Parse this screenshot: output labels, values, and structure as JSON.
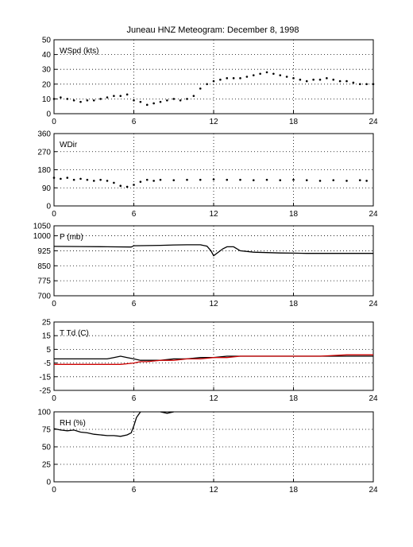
{
  "figure": {
    "title": "Juneau HNZ Meteogram:  December  8, 1998",
    "colors": {
      "axis": "#000000",
      "grid": "#000000",
      "series": "#000000",
      "dewpoint": "#cc0000"
    }
  },
  "chart_data": [
    {
      "type": "scatter",
      "panel_label": "WSpd (kts)",
      "xlim": [
        0,
        24
      ],
      "ylim": [
        0,
        50
      ],
      "x_ticks": [
        "0",
        "6",
        "12",
        "18",
        "24"
      ],
      "y_ticks": [
        "0",
        "10",
        "20",
        "30",
        "40",
        "50"
      ],
      "grid": true,
      "series": [
        {
          "color": "#000000",
          "x": [
            0,
            0.5,
            1,
            1.5,
            2,
            2.5,
            3,
            3.5,
            4,
            4.5,
            5,
            5.5,
            6,
            6.5,
            7,
            7.5,
            8,
            8.5,
            9,
            9.5,
            10,
            10.5,
            11,
            11.5,
            12,
            12.5,
            13,
            13.5,
            14,
            14.5,
            15,
            15.5,
            16,
            16.5,
            17,
            17.5,
            18,
            18.5,
            19,
            19.5,
            20,
            20.5,
            21,
            21.5,
            22,
            22.5,
            23,
            23.5,
            24
          ],
          "values": [
            10,
            11,
            10,
            9,
            8,
            9,
            9,
            10,
            11,
            12,
            12,
            13,
            9,
            8,
            6,
            7,
            8,
            9,
            10,
            9,
            10,
            12,
            17,
            20,
            22,
            23,
            24,
            24,
            24,
            25,
            26,
            27,
            28,
            27,
            26,
            25,
            24,
            23,
            22,
            23,
            23,
            24,
            23,
            22,
            22,
            21,
            20,
            20,
            20
          ]
        }
      ]
    },
    {
      "type": "scatter",
      "panel_label": "WDir",
      "xlim": [
        0,
        24
      ],
      "ylim": [
        0,
        360
      ],
      "x_ticks": [
        "0",
        "6",
        "12",
        "18",
        "24"
      ],
      "y_ticks": [
        "0",
        "90",
        "180",
        "270",
        "360"
      ],
      "grid": true,
      "series": [
        {
          "color": "#000000",
          "x": [
            0,
            0.5,
            1,
            1.5,
            2,
            2.5,
            3,
            3.5,
            4,
            4.5,
            5,
            5.5,
            6,
            6.5,
            7,
            7.5,
            8,
            9,
            10,
            11,
            12,
            13,
            14,
            15,
            16,
            17,
            18,
            19,
            20,
            21,
            22,
            23,
            23.5
          ],
          "values": [
            140,
            135,
            140,
            130,
            135,
            130,
            125,
            130,
            125,
            115,
            100,
            95,
            105,
            120,
            130,
            125,
            130,
            128,
            130,
            130,
            132,
            130,
            130,
            128,
            130,
            128,
            130,
            128,
            125,
            128,
            125,
            128,
            125
          ]
        }
      ]
    },
    {
      "type": "line",
      "panel_label": "P (mb)",
      "xlim": [
        0,
        24
      ],
      "ylim": [
        700,
        1050
      ],
      "x_ticks": [
        "0",
        "6",
        "12",
        "18",
        "24"
      ],
      "y_ticks": [
        "700",
        "775",
        "850",
        "925",
        "1000",
        "1050"
      ],
      "grid": true,
      "series": [
        {
          "color": "#000000",
          "x": [
            0,
            2,
            4,
            5.8,
            6,
            7,
            8,
            9,
            10,
            11,
            11.5,
            11.8,
            12,
            12.3,
            12.7,
            13,
            13.5,
            14,
            15,
            16,
            17,
            18,
            19,
            20,
            21,
            22,
            23,
            24
          ],
          "values": [
            947,
            946,
            945,
            944,
            950,
            951,
            952,
            954,
            955,
            955,
            948,
            925,
            900,
            915,
            935,
            945,
            945,
            925,
            918,
            916,
            914,
            913,
            912,
            912,
            912,
            912,
            912,
            912
          ]
        }
      ]
    },
    {
      "type": "line",
      "panel_label": "T Td (C)",
      "xlim": [
        0,
        24
      ],
      "ylim": [
        -25,
        25
      ],
      "x_ticks": [
        "0",
        "6",
        "12",
        "18",
        "24"
      ],
      "y_ticks": [
        "-25",
        "-15",
        "-5",
        "5",
        "15",
        "25"
      ],
      "grid": true,
      "series": [
        {
          "color": "#000000",
          "x": [
            0,
            1,
            2,
            3,
            4,
            4.5,
            5,
            5.5,
            6,
            6.5,
            7,
            8,
            9,
            10,
            11,
            12,
            13,
            14,
            15,
            16,
            18,
            20,
            22,
            24
          ],
          "values": [
            -2,
            -2,
            -2,
            -2,
            -2,
            -1,
            0,
            -1,
            -2,
            -3,
            -3,
            -3,
            -2,
            -2,
            -1,
            -1,
            0,
            0,
            0,
            0,
            0,
            0,
            0,
            0
          ]
        },
        {
          "color": "#cc0000",
          "x": [
            0,
            1,
            2,
            3,
            4,
            5,
            6,
            6.5,
            7,
            8,
            9,
            10,
            11,
            12,
            13,
            14,
            15,
            16,
            18,
            20,
            22,
            24
          ],
          "values": [
            -6,
            -6,
            -6,
            -6,
            -6,
            -6,
            -5,
            -4,
            -4,
            -3,
            -3,
            -2,
            -2,
            -1,
            -1,
            0,
            0,
            0,
            0,
            0,
            1,
            1
          ]
        }
      ]
    },
    {
      "type": "line",
      "panel_label": "RH (%)",
      "xlim": [
        0,
        24
      ],
      "ylim": [
        0,
        100
      ],
      "x_ticks": [
        "0",
        "6",
        "12",
        "18",
        "24"
      ],
      "y_ticks": [
        "0",
        "25",
        "50",
        "75",
        "100"
      ],
      "grid": true,
      "series": [
        {
          "color": "#000000",
          "x": [
            0,
            0.5,
            1,
            1.5,
            2,
            2.5,
            3,
            3.5,
            4,
            4.5,
            5,
            5.5,
            5.8,
            6,
            6.2,
            6.5
          ],
          "values": [
            76,
            74,
            73,
            74,
            71,
            70,
            68,
            67,
            66,
            66,
            65,
            67,
            70,
            80,
            92,
            100
          ]
        },
        {
          "color": "#000000",
          "x": [
            8,
            8.5,
            9
          ],
          "values": [
            100,
            98,
            100
          ]
        }
      ]
    }
  ]
}
